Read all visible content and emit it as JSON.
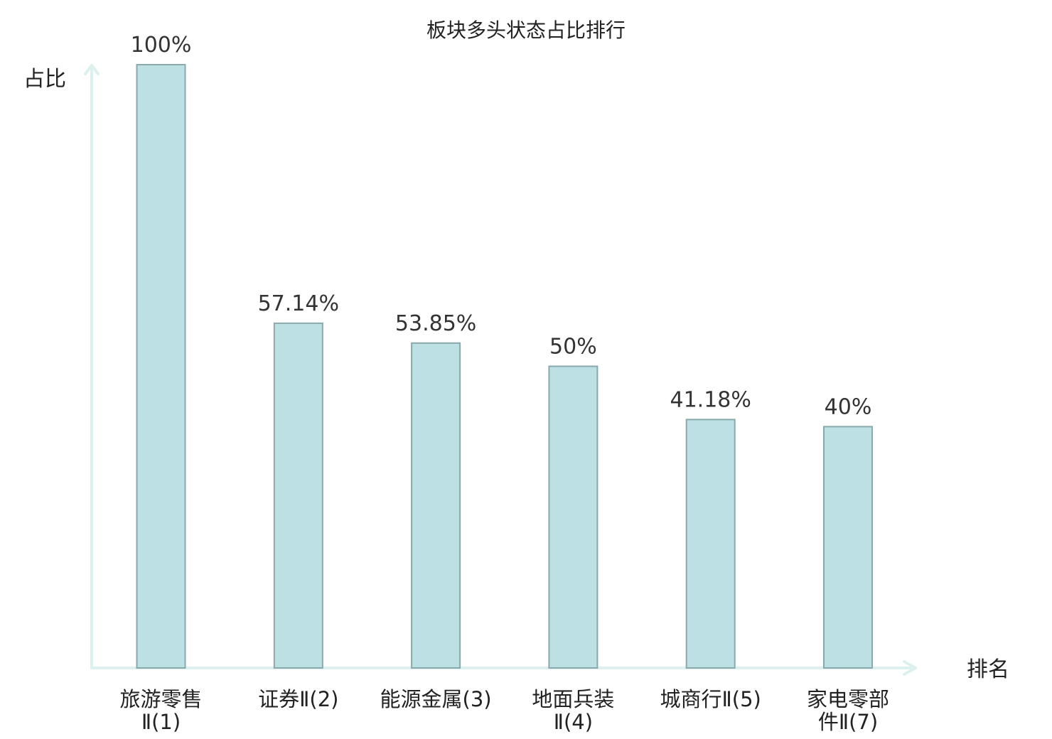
{
  "chart_data": {
    "type": "bar",
    "title": "板块多头状态占比排行",
    "ylabel": "占比",
    "xlabel": "排名",
    "categories": [
      [
        "旅游零售",
        "Ⅱ(1)"
      ],
      [
        "证券Ⅱ(2)"
      ],
      [
        "能源金属(3)"
      ],
      [
        "地面兵装",
        "Ⅱ(4)"
      ],
      [
        "城商行Ⅱ(5)"
      ],
      [
        "家电零部",
        "件Ⅱ(7)"
      ]
    ],
    "values": [
      100,
      57.14,
      53.85,
      50,
      41.18,
      40
    ],
    "value_labels": [
      "100%",
      "57.14%",
      "53.85%",
      "50%",
      "41.18%",
      "40%"
    ],
    "highlight_index": 5,
    "ylim": [
      0,
      100
    ],
    "grid": false,
    "colors": {
      "bar_fill": "#bce0e3",
      "bar_stroke": "#8aa9ac",
      "axis": "#dcf1ee",
      "text": "#222222",
      "highlight_text": "#e8141b"
    }
  }
}
